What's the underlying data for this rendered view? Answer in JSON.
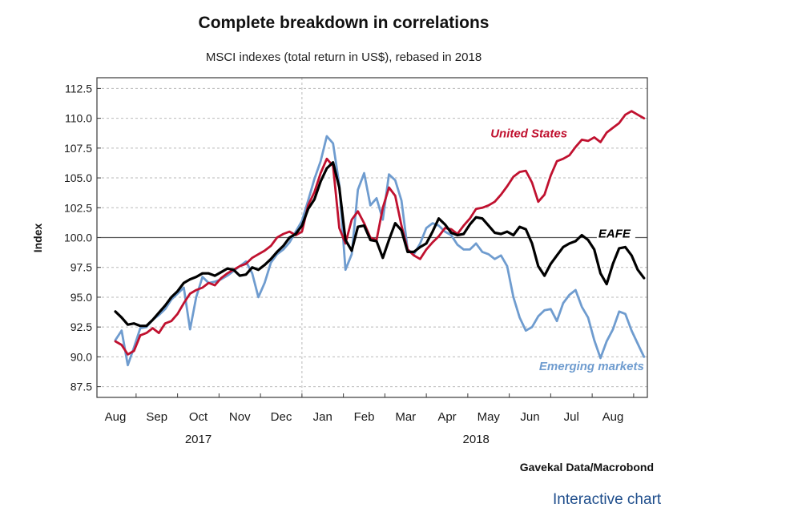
{
  "link_label": "Interactive chart",
  "colors": {
    "us": "#c0112f",
    "eafe": "#000000",
    "em": "#6f9ccf",
    "link": "#1f4e8c"
  },
  "chart_data": {
    "type": "line",
    "title": "Complete breakdown in correlations",
    "subtitle": "MSCI indexes (total return in US$), rebased in 2018",
    "ylabel": "Index",
    "xlabel": "",
    "ylim": [
      86.6,
      113.4
    ],
    "xlim": [
      0,
      13
    ],
    "baseline": 100,
    "grid": true,
    "source": "Gavekal Data/Macrobond",
    "yticks": [
      {
        "value": 112.5,
        "label": "112.5"
      },
      {
        "value": 110.0,
        "label": "110.0"
      },
      {
        "value": 107.5,
        "label": "107.5"
      },
      {
        "value": 105.0,
        "label": "105.0"
      },
      {
        "value": 102.5,
        "label": "102.5"
      },
      {
        "value": 100.0,
        "label": "100.0"
      },
      {
        "value": 97.5,
        "label": "97.5"
      },
      {
        "value": 95.0,
        "label": "95.0"
      },
      {
        "value": 92.5,
        "label": "92.5"
      },
      {
        "value": 90.0,
        "label": "90.0"
      },
      {
        "value": 87.5,
        "label": "87.5"
      }
    ],
    "months": [
      "Aug",
      "Sep",
      "Oct",
      "Nov",
      "Dec",
      "Jan",
      "Feb",
      "Mar",
      "Apr",
      "May",
      "Jun",
      "Jul",
      "Aug"
    ],
    "years": [
      {
        "label": "2017",
        "month_index": 2
      },
      {
        "label": "2018",
        "month_index": 8.7
      }
    ],
    "year_divider": 5,
    "series": [
      {
        "name": "United States",
        "color_key": "us",
        "x": [
          0.0,
          0.15,
          0.3,
          0.45,
          0.6,
          0.75,
          0.9,
          1.05,
          1.2,
          1.35,
          1.5,
          1.65,
          1.8,
          1.95,
          2.1,
          2.25,
          2.4,
          2.55,
          2.7,
          2.85,
          3.0,
          3.15,
          3.3,
          3.45,
          3.6,
          3.75,
          3.9,
          4.05,
          4.2,
          4.35,
          4.5,
          4.65,
          4.8,
          4.95,
          5.1,
          5.25,
          5.4,
          5.55,
          5.7,
          5.85,
          6.0,
          6.15,
          6.3,
          6.45,
          6.6,
          6.75,
          6.9,
          7.05,
          7.2,
          7.35,
          7.5,
          7.65,
          7.8,
          7.95,
          8.1,
          8.25,
          8.4,
          8.55,
          8.7,
          8.85,
          9.0,
          9.15,
          9.3,
          9.45,
          9.6,
          9.75,
          9.9,
          10.05,
          10.2,
          10.35,
          10.5,
          10.65,
          10.8,
          10.95,
          11.1,
          11.25,
          11.4,
          11.55,
          11.7,
          11.85,
          12.0,
          12.15,
          12.3,
          12.45,
          12.6,
          12.75
        ],
        "values": [
          91.3,
          91.0,
          90.2,
          90.5,
          91.8,
          92.0,
          92.4,
          92.0,
          92.8,
          93.0,
          93.6,
          94.5,
          95.3,
          95.6,
          95.8,
          96.2,
          96.0,
          96.6,
          97.0,
          97.3,
          97.6,
          97.8,
          98.3,
          98.6,
          98.9,
          99.3,
          100.0,
          100.3,
          100.5,
          100.2,
          100.5,
          102.7,
          103.8,
          105.4,
          106.6,
          106.0,
          100.8,
          99.5,
          101.5,
          102.2,
          101.2,
          100.0,
          99.8,
          102.5,
          104.2,
          103.5,
          101.0,
          99.0,
          98.5,
          98.2,
          99.0,
          99.6,
          100.1,
          100.8,
          100.7,
          100.3,
          101.0,
          101.6,
          102.4,
          102.5,
          102.7,
          103.0,
          103.6,
          104.3,
          105.1,
          105.5,
          105.6,
          104.6,
          103.0,
          103.6,
          105.2,
          106.4,
          106.6,
          106.9,
          107.6,
          108.2,
          108.1,
          108.4,
          108.0,
          108.8,
          109.2,
          109.6,
          110.3,
          110.6,
          110.3,
          110.0
        ]
      },
      {
        "name": "EAFE",
        "color_key": "eafe",
        "x": [
          0.0,
          0.15,
          0.3,
          0.45,
          0.6,
          0.75,
          0.9,
          1.05,
          1.2,
          1.35,
          1.5,
          1.65,
          1.8,
          1.95,
          2.1,
          2.25,
          2.4,
          2.55,
          2.7,
          2.85,
          3.0,
          3.15,
          3.3,
          3.45,
          3.6,
          3.75,
          3.9,
          4.05,
          4.2,
          4.35,
          4.5,
          4.65,
          4.8,
          4.95,
          5.1,
          5.25,
          5.4,
          5.55,
          5.7,
          5.85,
          6.0,
          6.15,
          6.3,
          6.45,
          6.6,
          6.75,
          6.9,
          7.05,
          7.2,
          7.35,
          7.5,
          7.65,
          7.8,
          7.95,
          8.1,
          8.25,
          8.4,
          8.55,
          8.7,
          8.85,
          9.0,
          9.15,
          9.3,
          9.45,
          9.6,
          9.75,
          9.9,
          10.05,
          10.2,
          10.35,
          10.5,
          10.65,
          10.8,
          10.95,
          11.1,
          11.25,
          11.4,
          11.55,
          11.7,
          11.85,
          12.0,
          12.15,
          12.3,
          12.45,
          12.6,
          12.75
        ],
        "values": [
          93.8,
          93.3,
          92.7,
          92.8,
          92.6,
          92.6,
          93.1,
          93.7,
          94.3,
          95.0,
          95.5,
          96.2,
          96.5,
          96.7,
          97.0,
          97.0,
          96.8,
          97.1,
          97.4,
          97.3,
          96.8,
          96.9,
          97.5,
          97.3,
          97.7,
          98.2,
          98.8,
          99.3,
          100.0,
          100.3,
          101.0,
          102.4,
          103.2,
          104.7,
          105.8,
          106.3,
          104.2,
          99.8,
          98.9,
          100.9,
          101.0,
          99.8,
          99.7,
          98.3,
          99.8,
          101.2,
          100.6,
          98.8,
          98.8,
          99.2,
          99.5,
          100.5,
          101.6,
          101.1,
          100.4,
          100.2,
          100.3,
          101.1,
          101.7,
          101.6,
          101.0,
          100.4,
          100.3,
          100.5,
          100.2,
          100.9,
          100.7,
          99.5,
          97.6,
          96.8,
          97.8,
          98.5,
          99.2,
          99.5,
          99.7,
          100.2,
          99.8,
          99.0,
          97.0,
          96.1,
          97.8,
          99.1,
          99.2,
          98.5,
          97.3,
          96.6
        ]
      },
      {
        "name": "Emerging markets",
        "color_key": "em",
        "x": [
          0.0,
          0.15,
          0.3,
          0.45,
          0.6,
          0.75,
          0.9,
          1.05,
          1.2,
          1.35,
          1.5,
          1.65,
          1.8,
          1.95,
          2.1,
          2.25,
          2.4,
          2.55,
          2.7,
          2.85,
          3.0,
          3.15,
          3.3,
          3.45,
          3.6,
          3.75,
          3.9,
          4.05,
          4.2,
          4.35,
          4.5,
          4.65,
          4.8,
          4.95,
          5.1,
          5.25,
          5.4,
          5.55,
          5.7,
          5.85,
          6.0,
          6.15,
          6.3,
          6.45,
          6.6,
          6.75,
          6.9,
          7.05,
          7.2,
          7.35,
          7.5,
          7.65,
          7.8,
          7.95,
          8.1,
          8.25,
          8.4,
          8.55,
          8.7,
          8.85,
          9.0,
          9.15,
          9.3,
          9.45,
          9.6,
          9.75,
          9.9,
          10.05,
          10.2,
          10.35,
          10.5,
          10.65,
          10.8,
          10.95,
          11.1,
          11.25,
          11.4,
          11.55,
          11.7,
          11.85,
          12.0,
          12.15,
          12.3,
          12.45,
          12.6,
          12.75
        ],
        "values": [
          91.4,
          92.2,
          89.3,
          90.8,
          92.4,
          92.5,
          93.1,
          93.5,
          94.0,
          94.8,
          95.3,
          95.8,
          92.3,
          95.0,
          96.7,
          96.2,
          96.3,
          96.5,
          96.8,
          97.2,
          97.6,
          98.0,
          97.0,
          95.0,
          96.2,
          97.9,
          98.6,
          99.0,
          99.6,
          100.5,
          101.4,
          103.1,
          104.9,
          106.4,
          108.5,
          107.9,
          104.4,
          97.3,
          98.6,
          104.0,
          105.4,
          102.7,
          103.3,
          101.5,
          105.3,
          104.8,
          103.1,
          99.0,
          98.6,
          99.5,
          100.8,
          101.2,
          101.0,
          100.5,
          100.2,
          99.4,
          99.0,
          99.0,
          99.5,
          98.8,
          98.6,
          98.2,
          98.5,
          97.6,
          95.0,
          93.3,
          92.2,
          92.5,
          93.4,
          93.9,
          94.0,
          93.0,
          94.5,
          95.2,
          95.6,
          94.2,
          93.3,
          91.4,
          89.9,
          91.3,
          92.3,
          93.8,
          93.6,
          92.2,
          91.1,
          90.0
        ]
      }
    ],
    "annotations": [
      {
        "series": "United States",
        "text": "United States",
        "x": 10.9,
        "y": 108.4,
        "anchor": "end"
      },
      {
        "series": "EAFE",
        "text": "EAFE",
        "x": 11.65,
        "y": 100.0,
        "anchor": "start"
      },
      {
        "series": "Emerging markets",
        "text": "Emerging markets",
        "x": 12.75,
        "y": 88.9,
        "anchor": "end"
      }
    ]
  }
}
